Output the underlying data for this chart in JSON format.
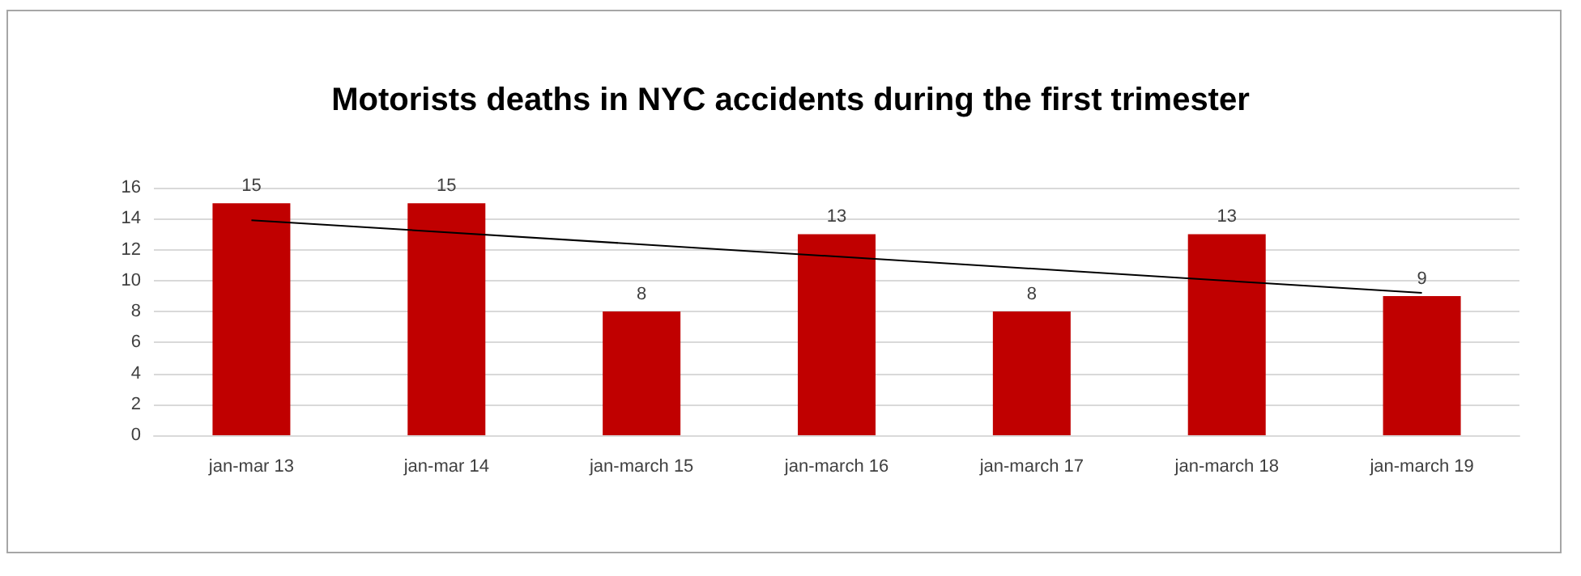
{
  "chart_data": {
    "type": "bar",
    "title": "Motorists deaths in NYC accidents during the first trimester",
    "categories": [
      "jan-mar 13",
      "jan-mar 14",
      "jan-march 15",
      "jan-march 16",
      "jan-march 17",
      "jan-march 18",
      "jan-march 19"
    ],
    "series": [
      {
        "color": "#c00000",
        "values": [
          15,
          15,
          8,
          13,
          8,
          13,
          9
        ],
        "value_labels": [
          "15",
          "15",
          "8",
          "13",
          "8",
          "13",
          "9"
        ]
      },
      {
        "type": "line",
        "color": "#000000",
        "x": [
          "jan-mar 13",
          "jan-march 19"
        ],
        "values": [
          13.9,
          9.2
        ],
        "marker": "none"
      }
    ],
    "ylim": [
      0,
      16
    ],
    "yticks": [
      0,
      2,
      4,
      6,
      8,
      10,
      12,
      14,
      16
    ],
    "grid": "y"
  }
}
